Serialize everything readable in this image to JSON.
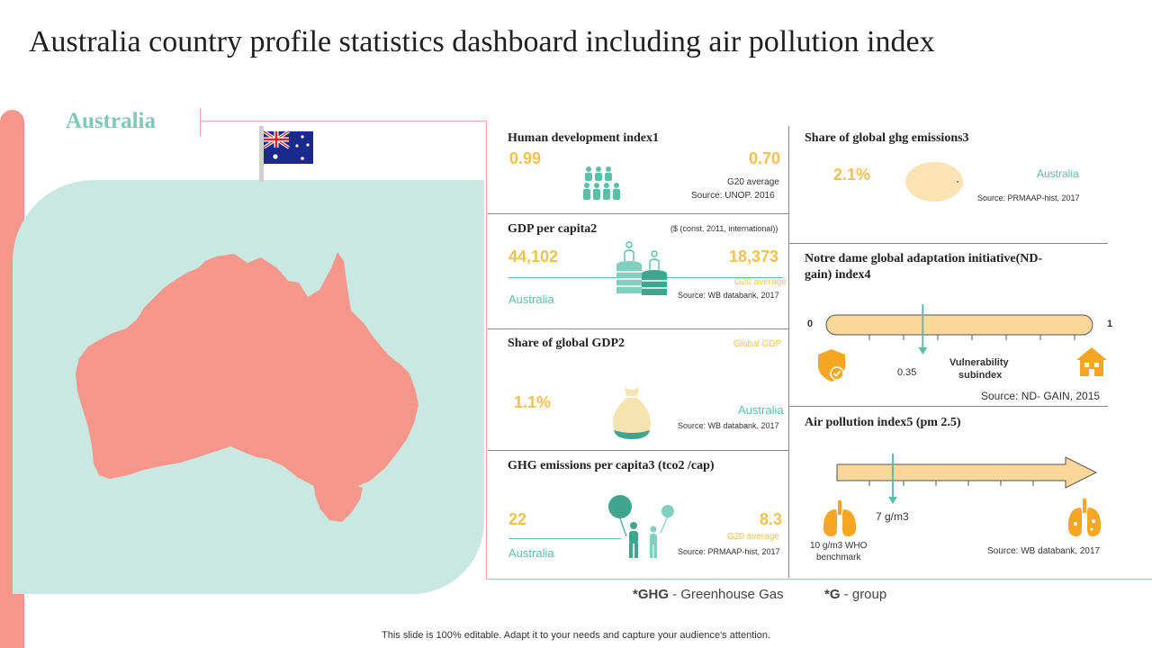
{
  "page_title": "Australia country profile statistics dashboard including air pollution index",
  "country": "Australia",
  "colors": {
    "accent_red": "#f7968b",
    "teal": "#5bbfa8",
    "gold": "#f2c14e",
    "map_bg": "#c9e8e1"
  },
  "hdi": {
    "title": "Human development index1",
    "value": "0.99",
    "g20_value": "0.70",
    "g20_label": "G20 average",
    "source": "Source: UNOP.  2016"
  },
  "gdp_per_capita": {
    "title": "GDP per capita2",
    "unit_note": "($ (const. 2011, international))",
    "value": "44,102",
    "country_label": "Australia",
    "g20_value": "18,373",
    "g20_label": "G20 average",
    "source": "Source: WB databank, 2017"
  },
  "share_gdp": {
    "title": "Share of global GDP2",
    "global_label": "Global GDP",
    "value": "1.1%",
    "country_label": "Australia",
    "source": "Source: WB databank, 2017"
  },
  "ghg_per_capita": {
    "title": "GHG emissions per capita3 (tco2 /cap)",
    "value": "22",
    "country_label": "Australia",
    "g20_value": "8.3",
    "g20_label": "G20 average",
    "source": "Source: PRMAAP-hist, 2017"
  },
  "share_ghg": {
    "title": "Share of global ghg emissions3",
    "value": "2.1%",
    "country_label": "Australia",
    "source": "Source: PRMAAP-hist, 2017"
  },
  "nd_gain": {
    "title_line1": "Notre dame global adaptation initiative(ND-",
    "title_line2": "gain) index4",
    "min": "0",
    "max": "1",
    "value": "0.35",
    "value_num": 0.35,
    "sub_label_1": "Vulnerability",
    "sub_label_2": "subindex",
    "source": "Source: ND- GAIN,  2015"
  },
  "air_pollution": {
    "title": "Air pollution index5 (pm 2.5)",
    "value": "7 g/m3",
    "benchmark_line1": "10 g/m3 WHO",
    "benchmark_line2": "benchmark",
    "source": "Source: WB databank, 2017"
  },
  "legend": {
    "ghg_abbr": "*GHG",
    "ghg_text": " - Greenhouse  Gas",
    "g_abbr": "*G",
    "g_text": " - group"
  },
  "footer": "This slide is 100% editable. Adapt it to your needs and capture your audience's attention."
}
